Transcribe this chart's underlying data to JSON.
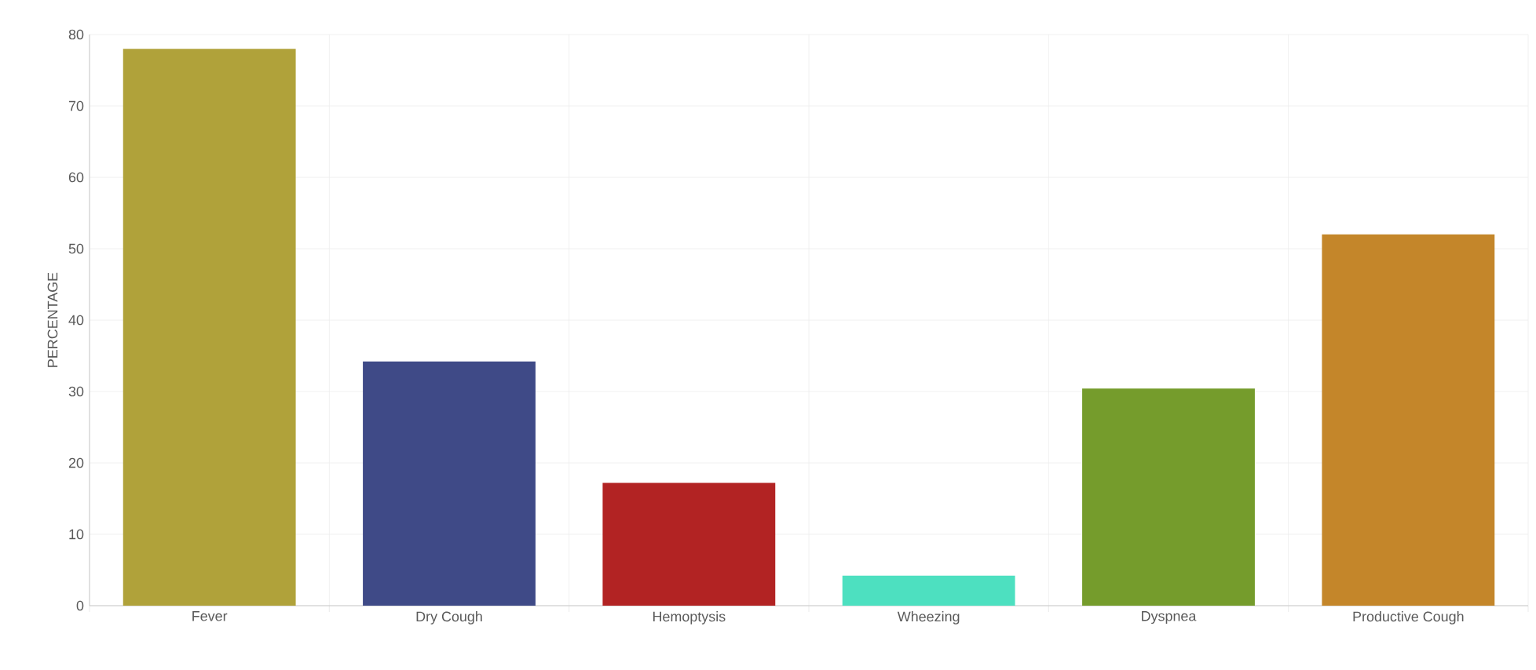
{
  "chart_data": {
    "type": "bar",
    "ylabel": "PERCENTAGE",
    "categories": [
      "Fever",
      "Dry Cough",
      "Hemoptysis",
      "Wheezing",
      "Dyspnea",
      "Productive Cough"
    ],
    "values": [
      78,
      34.2,
      17.2,
      4.2,
      30.4,
      52
    ],
    "colors": [
      "#b0a23a",
      "#3f4a87",
      "#b22323",
      "#4de0c0",
      "#759c2c",
      "#c4862a"
    ],
    "ylim": [
      0,
      80
    ],
    "yticks": [
      0,
      10,
      20,
      30,
      40,
      50,
      60,
      70,
      80
    ],
    "grid": true
  }
}
